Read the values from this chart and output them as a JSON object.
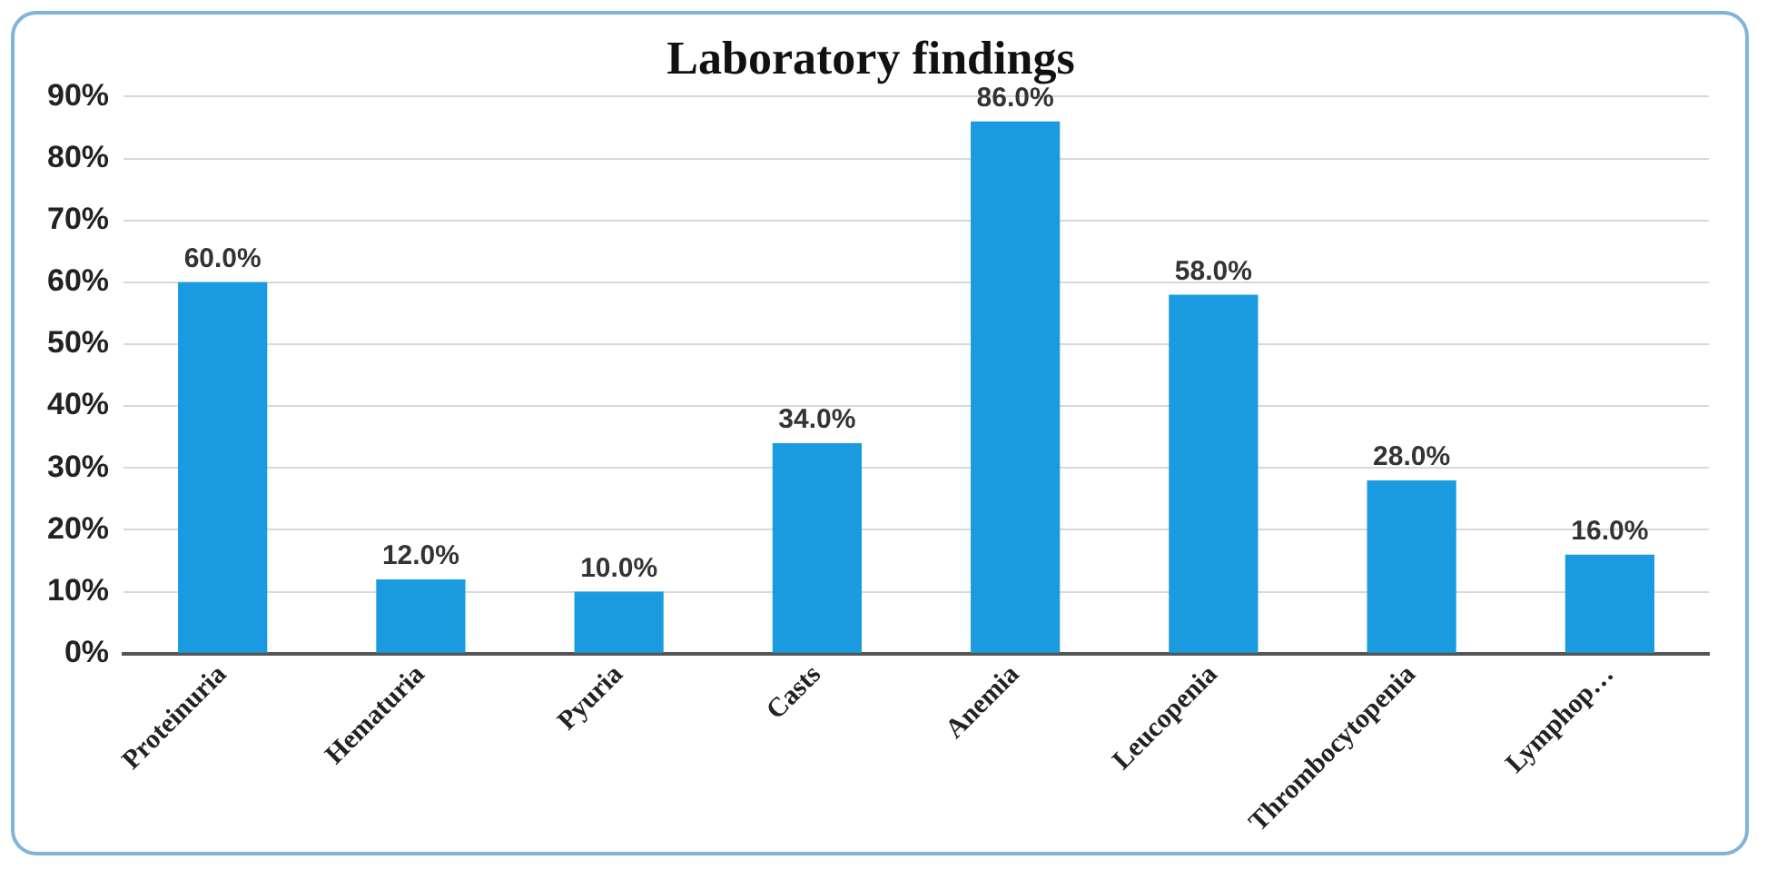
{
  "chart_data": {
    "type": "bar",
    "title": "Laboratory findings",
    "categories": [
      "Proteinuria",
      "Hematuria",
      "Pyuria",
      "Casts",
      "Anemia",
      "Leucopenia",
      "Thrombocytopenia",
      "Lymphop…"
    ],
    "values": [
      60,
      12,
      10,
      34,
      86,
      58,
      28,
      16
    ],
    "value_labels": [
      "60.0%",
      "12.0%",
      "10.0%",
      "34.0%",
      "86.0%",
      "58.0%",
      "28.0%",
      "16.0%"
    ],
    "color": "#1a9be0",
    "ylim": [
      0,
      90
    ],
    "yticks": [
      {
        "value": 0,
        "label": "0%"
      },
      {
        "value": 10,
        "label": "10%"
      },
      {
        "value": 20,
        "label": "20%"
      },
      {
        "value": 30,
        "label": "30%"
      },
      {
        "value": 40,
        "label": "40%"
      },
      {
        "value": 50,
        "label": "50%"
      },
      {
        "value": 60,
        "label": "60%"
      },
      {
        "value": 70,
        "label": "70%"
      },
      {
        "value": 80,
        "label": "80%"
      },
      {
        "value": 90,
        "label": "90%"
      }
    ],
    "grid": "y"
  }
}
